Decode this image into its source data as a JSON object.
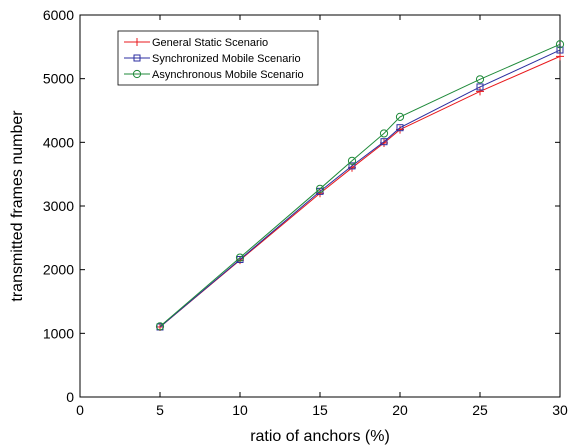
{
  "chart_data": {
    "type": "line",
    "xlabel": "ratio of anchors (%)",
    "ylabel": "transmitted frames number",
    "xlim": [
      0,
      30
    ],
    "ylim": [
      0,
      6000
    ],
    "xticks": [
      0,
      5,
      10,
      15,
      20,
      25,
      30
    ],
    "yticks": [
      0,
      1000,
      2000,
      3000,
      4000,
      5000,
      6000
    ],
    "grid": false,
    "legend_position": "top-left",
    "x": [
      5,
      10,
      15,
      17,
      19,
      20,
      25,
      30
    ],
    "series": [
      {
        "name": "General Static Scenario",
        "color": "#e8191c",
        "marker": "plus",
        "values": [
          1100,
          2150,
          3200,
          3600,
          3990,
          4200,
          4800,
          5350
        ]
      },
      {
        "name": "Synchronized Mobile Scenario",
        "color": "#2b2ea0",
        "marker": "square",
        "values": [
          1100,
          2160,
          3230,
          3630,
          4010,
          4230,
          4870,
          5450
        ]
      },
      {
        "name": "Asynchronous Mobile Scenario",
        "color": "#1f8a3a",
        "marker": "circle",
        "values": [
          1110,
          2190,
          3270,
          3710,
          4140,
          4400,
          4990,
          5540
        ]
      }
    ]
  }
}
